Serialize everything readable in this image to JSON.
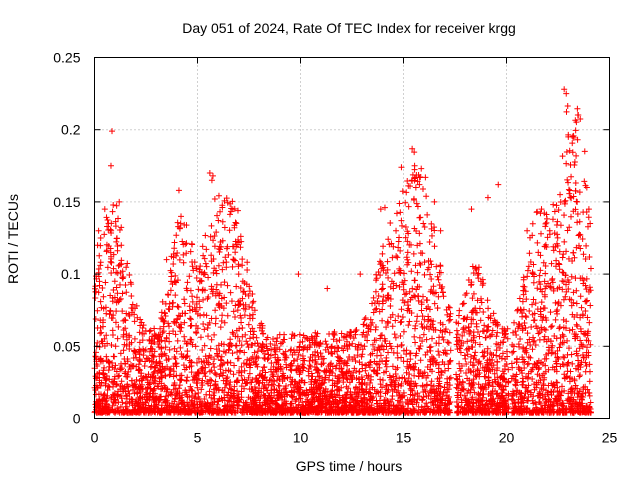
{
  "chart_data": {
    "type": "scatter",
    "title": "Day 051 of 2024, Rate Of TEC Index for receiver krgg",
    "xlabel": "GPS time / hours",
    "ylabel": "ROTI / TECUs",
    "xlim": [
      0,
      25
    ],
    "ylim": [
      0,
      0.25
    ],
    "x_ticks": [
      "0",
      "5",
      "10",
      "15",
      "20",
      "25"
    ],
    "y_ticks": [
      "0",
      "0.05",
      "0.1",
      "0.15",
      "0.2",
      "0.25"
    ],
    "grid": true,
    "legend": "none",
    "marker": "+",
    "color": "#ff0000",
    "series": [
      {
        "note": "notable extreme points read from plot",
        "x": [
          0.15,
          0.2,
          0.3,
          0.5,
          0.8,
          0.85,
          1.2,
          1.3,
          3.5,
          4.1,
          4.2,
          5.6,
          5.7,
          5.75,
          6.7,
          7.0,
          9.9,
          11.3,
          12.9,
          13.9,
          14.0,
          14.1,
          14.9,
          15.4,
          15.6,
          16.5,
          16.8,
          18.3,
          19.1,
          19.6,
          21.0,
          21.7,
          22.1,
          22.6,
          22.8,
          22.9,
          23.0,
          23.8,
          23.9,
          24.0
        ],
        "y": [
          0.12,
          0.13,
          0.125,
          0.145,
          0.175,
          0.199,
          0.15,
          0.12,
          0.11,
          0.158,
          0.14,
          0.17,
          0.165,
          0.168,
          0.105,
          0.1,
          0.1,
          0.09,
          0.1,
          0.145,
          0.09,
          0.146,
          0.174,
          0.165,
          0.16,
          0.15,
          0.13,
          0.145,
          0.153,
          0.162,
          0.13,
          0.145,
          0.13,
          0.155,
          0.228,
          0.225,
          0.195,
          0.185,
          0.16,
          0.145
        ]
      }
    ]
  }
}
